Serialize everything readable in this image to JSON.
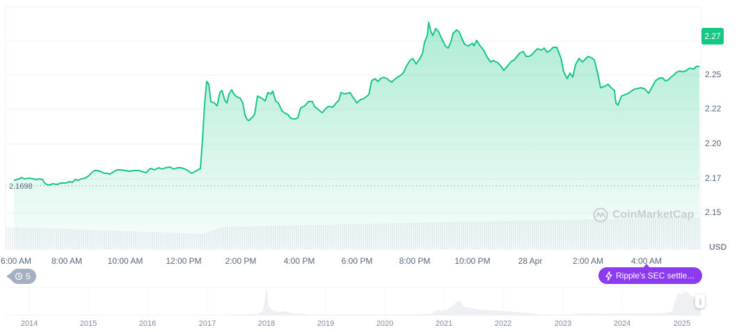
{
  "chart_data": {
    "type": "area",
    "title": "",
    "currency": "USD",
    "xlabel": "",
    "ylabel": "USD",
    "ylim": [
      2.14,
      2.285
    ],
    "grid": true,
    "y_ticks": [
      "2.27",
      "2.25",
      "2.22",
      "2.20",
      "2.17",
      "2.15"
    ],
    "x_ticks": [
      "6:00 AM",
      "8:00 AM",
      "10:00 AM",
      "12:00 PM",
      "2:00 PM",
      "4:00 PM",
      "6:00 PM",
      "8:00 PM",
      "10:00 PM",
      "28 Apr",
      "2:00 AM",
      "4:00 AM"
    ],
    "open_price": "2.1698",
    "current_price": "2.27",
    "line_color": "#16c784",
    "series": [
      {
        "name": "Price",
        "x": [
          "5:30 AM",
          "6:00 AM",
          "6:30 AM",
          "7:00 AM",
          "7:30 AM",
          "8:00 AM",
          "8:30 AM",
          "9:00 AM",
          "9:30 AM",
          "10:00 AM",
          "10:30 AM",
          "11:00 AM",
          "11:30 AM",
          "12:00 PM",
          "12:30 PM",
          "12:45 PM",
          "1:00 PM",
          "1:15 PM",
          "1:30 PM",
          "1:45 PM",
          "2:00 PM",
          "2:30 PM",
          "3:00 PM",
          "3:15 PM",
          "3:30 PM",
          "4:00 PM",
          "4:30 PM",
          "5:00 PM",
          "5:30 PM",
          "6:00 PM",
          "6:30 PM",
          "7:00 PM",
          "7:30 PM",
          "8:00 PM",
          "8:15 PM",
          "8:30 PM",
          "9:00 PM",
          "9:30 PM",
          "10:00 PM",
          "10:30 PM",
          "11:00 PM",
          "11:30 PM",
          "12:00 AM",
          "12:30 AM",
          "1:00 AM",
          "1:30 AM",
          "2:00 AM",
          "2:30 AM",
          "3:00 AM",
          "3:30 AM",
          "4:00 AM",
          "4:30 AM",
          "5:00 AM",
          "5:30 AM"
        ],
        "values": [
          2.172,
          2.173,
          2.169,
          2.17,
          2.175,
          2.178,
          2.176,
          2.178,
          2.178,
          2.179,
          2.179,
          2.18,
          2.178,
          2.176,
          2.207,
          2.248,
          2.237,
          2.24,
          2.234,
          2.239,
          2.213,
          2.234,
          2.233,
          2.219,
          2.215,
          2.226,
          2.218,
          2.225,
          2.231,
          2.234,
          2.246,
          2.249,
          2.256,
          2.275,
          2.287,
          2.27,
          2.268,
          2.264,
          2.25,
          2.253,
          2.255,
          2.243,
          2.247,
          2.231,
          2.25,
          2.252,
          2.225,
          2.231,
          2.235,
          2.234,
          2.249,
          2.257,
          2.268,
          2.274
        ]
      },
      {
        "name": "Volume",
        "note": "relative bars below price area"
      }
    ],
    "navigator": {
      "years": [
        "2014",
        "2015",
        "2016",
        "2017",
        "2018",
        "2019",
        "2020",
        "2021",
        "2022",
        "2023",
        "2024",
        "2025"
      ]
    }
  },
  "labels": {
    "y_ticks": [
      "2.27",
      "2.25",
      "2.22",
      "2.20",
      "2.17",
      "2.15"
    ],
    "x_ticks": [
      "6:00 AM",
      "8:00 AM",
      "10:00 AM",
      "12:00 PM",
      "2:00 PM",
      "4:00 PM",
      "6:00 PM",
      "8:00 PM",
      "10:00 PM",
      "28 Apr",
      "2:00 AM",
      "4:00 AM"
    ],
    "years": [
      "2014",
      "2015",
      "2016",
      "2017",
      "2018",
      "2019",
      "2020",
      "2021",
      "2022",
      "2023",
      "2024",
      "2025"
    ],
    "current_price": "2.27",
    "open_price": "2.1698",
    "currency": "USD",
    "watermark": "CoinMarketCap",
    "history_count": "5",
    "news_title": "Ripple's SEC settle..."
  },
  "colors": {
    "line": "#16c784",
    "news_badge": "#8c3bf0",
    "history_badge": "#a6b0c3"
  }
}
